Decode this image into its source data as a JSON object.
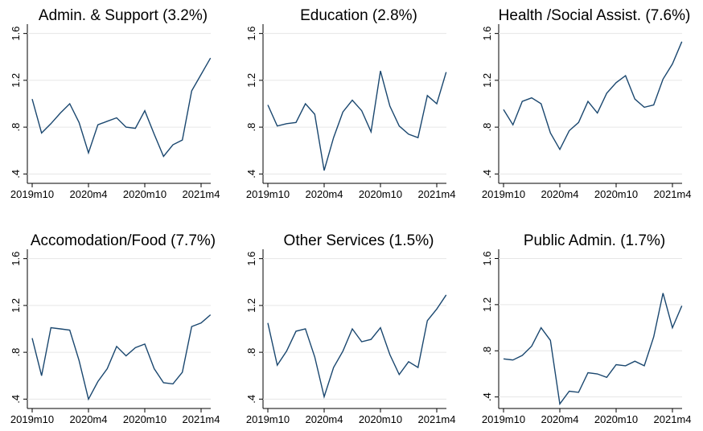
{
  "chart_data": [
    {
      "type": "line",
      "title": "Admin. & Support (3.2%)",
      "categories": [
        "2019m10",
        null,
        null,
        null,
        null,
        null,
        "2020m4",
        null,
        null,
        null,
        null,
        null,
        "2020m10",
        null,
        null,
        null,
        null,
        null,
        "2021m4",
        null
      ],
      "series": [
        {
          "color": "#1a476f",
          "values": [
            1.04,
            0.75,
            0.83,
            0.92,
            1.0,
            0.84,
            0.58,
            0.82,
            0.85,
            0.88,
            0.8,
            0.79,
            0.94,
            0.74,
            0.55,
            0.65,
            0.69,
            1.11,
            1.25,
            1.39
          ]
        }
      ],
      "ylim": [
        0.32,
        1.68
      ],
      "yticks": [
        {
          "value": 0.4,
          "label": ".4"
        },
        {
          "value": 0.8,
          "label": ".8"
        },
        1.2,
        1.6
      ],
      "grid": true
    },
    {
      "type": "line",
      "title": "Education (2.8%)",
      "categories": [
        "2019m10",
        null,
        null,
        null,
        null,
        null,
        "2020m4",
        null,
        null,
        null,
        null,
        null,
        "2020m10",
        null,
        null,
        null,
        null,
        null,
        "2021m4",
        null
      ],
      "series": [
        {
          "color": "#1a476f",
          "values": [
            0.99,
            0.81,
            0.83,
            0.84,
            1.0,
            0.91,
            0.43,
            0.71,
            0.93,
            1.03,
            0.94,
            0.76,
            1.28,
            0.98,
            0.81,
            0.74,
            0.71,
            1.07,
            1.0,
            1.27
          ]
        }
      ],
      "ylim": [
        0.32,
        1.68
      ],
      "yticks": [
        {
          "value": 0.4,
          "label": ".4"
        },
        {
          "value": 0.8,
          "label": ".8"
        },
        1.2,
        1.6
      ],
      "grid": true
    },
    {
      "type": "line",
      "title": "Health /Social Assist. (7.6%)",
      "categories": [
        "2019m10",
        null,
        null,
        null,
        null,
        null,
        "2020m4",
        null,
        null,
        null,
        null,
        null,
        "2020m10",
        null,
        null,
        null,
        null,
        null,
        "2021m4",
        null
      ],
      "series": [
        {
          "color": "#1a476f",
          "values": [
            0.95,
            0.82,
            1.02,
            1.05,
            1.0,
            0.75,
            0.61,
            0.77,
            0.84,
            1.02,
            0.92,
            1.09,
            1.18,
            1.24,
            1.04,
            0.97,
            0.99,
            1.21,
            1.34,
            1.53
          ]
        }
      ],
      "ylim": [
        0.32,
        1.68
      ],
      "yticks": [
        {
          "value": 0.4,
          "label": ".4"
        },
        {
          "value": 0.8,
          "label": ".8"
        },
        1.2,
        1.6
      ],
      "grid": true
    },
    {
      "type": "line",
      "title": "Accomodation/Food (7.7%)",
      "categories": [
        "2019m10",
        null,
        null,
        null,
        null,
        null,
        "2020m4",
        null,
        null,
        null,
        null,
        null,
        "2020m10",
        null,
        null,
        null,
        null,
        null,
        "2021m4",
        null
      ],
      "series": [
        {
          "color": "#1a476f",
          "values": [
            0.92,
            0.6,
            1.01,
            1.0,
            0.99,
            0.73,
            0.4,
            0.55,
            0.66,
            0.85,
            0.77,
            0.84,
            0.87,
            0.66,
            0.54,
            0.53,
            0.63,
            1.02,
            1.05,
            1.12
          ]
        }
      ],
      "ylim": [
        0.32,
        1.68
      ],
      "yticks": [
        {
          "value": 0.4,
          "label": ".4"
        },
        {
          "value": 0.8,
          "label": ".8"
        },
        1.2,
        1.6
      ],
      "grid": true
    },
    {
      "type": "line",
      "title": "Other Services (1.5%)",
      "categories": [
        "2019m10",
        null,
        null,
        null,
        null,
        null,
        "2020m4",
        null,
        null,
        null,
        null,
        null,
        "2020m10",
        null,
        null,
        null,
        null,
        null,
        "2021m4",
        null
      ],
      "series": [
        {
          "color": "#1a476f",
          "values": [
            1.05,
            0.69,
            0.81,
            0.98,
            1.0,
            0.76,
            0.42,
            0.67,
            0.81,
            1.0,
            0.89,
            0.91,
            1.01,
            0.78,
            0.61,
            0.72,
            0.67,
            1.07,
            1.17,
            1.29
          ]
        }
      ],
      "ylim": [
        0.32,
        1.68
      ],
      "yticks": [
        {
          "value": 0.4,
          "label": ".4"
        },
        {
          "value": 0.8,
          "label": ".8"
        },
        1.2,
        1.6
      ],
      "grid": true
    },
    {
      "type": "line",
      "title": "Public Admin. (1.7%)",
      "categories": [
        "2019m10",
        null,
        null,
        null,
        null,
        null,
        "2020m4",
        null,
        null,
        null,
        null,
        null,
        "2020m10",
        null,
        null,
        null,
        null,
        null,
        "2021m4",
        null
      ],
      "series": [
        {
          "color": "#1a476f",
          "values": [
            0.73,
            0.72,
            0.76,
            0.84,
            1.0,
            0.89,
            0.34,
            0.45,
            0.44,
            0.61,
            0.6,
            0.57,
            0.68,
            0.67,
            0.71,
            0.67,
            0.92,
            1.3,
            1.0,
            1.19
          ]
        }
      ],
      "ylim": [
        0.3,
        1.68
      ],
      "yticks": [
        {
          "value": 0.4,
          "label": ".4"
        },
        {
          "value": 0.8,
          "label": ".8"
        },
        1.2,
        1.6
      ],
      "grid": true
    }
  ]
}
